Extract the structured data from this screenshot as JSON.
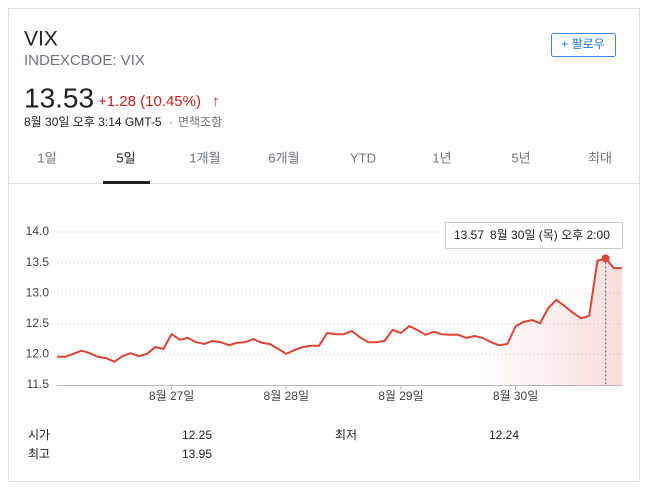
{
  "header": {
    "title": "VIX",
    "subtitle": "INDEXCBOE: VIX",
    "price": "13.53",
    "change": "+1.28 (10.45%)",
    "arrow": "↑",
    "timestamp": "8월 30일 오후 3:14 GMT-5",
    "separator": "·",
    "disclaimer": "면책조항",
    "follow": "+ 팔로우"
  },
  "tabs": [
    "1일",
    "5일",
    "1개월",
    "6개월",
    "YTD",
    "1년",
    "5년",
    "최대"
  ],
  "selected_tab": 1,
  "stats": [
    [
      "시가",
      "12.25",
      "최저",
      "12.24"
    ],
    [
      "최고",
      "13.95"
    ]
  ],
  "chart_data": {
    "type": "line",
    "categories": [
      null,
      null,
      null,
      null,
      null,
      null,
      null,
      null,
      null,
      null,
      null,
      null,
      null,
      null,
      "8월 27일",
      null,
      null,
      null,
      null,
      null,
      null,
      null,
      null,
      null,
      null,
      null,
      null,
      null,
      "8월 28일",
      null,
      null,
      null,
      null,
      null,
      null,
      null,
      null,
      null,
      null,
      null,
      null,
      null,
      "8월 29일",
      null,
      null,
      null,
      null,
      null,
      null,
      null,
      null,
      null,
      null,
      null,
      null,
      null,
      "8월 30일",
      null,
      null,
      null,
      null,
      null,
      null,
      null,
      null,
      null,
      null,
      null,
      null,
      null
    ],
    "values": [
      11.96,
      11.96,
      12.01,
      12.06,
      12.02,
      11.96,
      11.94,
      11.88,
      11.97,
      12.02,
      11.97,
      12.01,
      12.12,
      12.09,
      12.33,
      12.24,
      12.27,
      12.2,
      12.17,
      12.22,
      12.2,
      12.15,
      12.19,
      12.2,
      12.25,
      12.19,
      12.17,
      12.09,
      12.01,
      12.07,
      12.12,
      12.14,
      12.14,
      12.35,
      12.33,
      12.33,
      12.38,
      12.28,
      12.2,
      12.2,
      12.22,
      12.4,
      12.35,
      12.46,
      12.4,
      12.32,
      12.37,
      12.33,
      12.32,
      12.32,
      12.27,
      12.3,
      12.27,
      12.2,
      12.15,
      12.17,
      12.46,
      12.53,
      12.56,
      12.51,
      12.76,
      12.89,
      12.79,
      12.68,
      12.59,
      12.63,
      13.53,
      13.57,
      13.41,
      13.41
    ],
    "color": "#db4437",
    "ylim": [
      11.5,
      14
    ],
    "yticks": [
      11.5,
      {
        "value": 12,
        "label": "12.0"
      },
      12.5,
      {
        "value": 13,
        "label": "13.0"
      },
      13.5,
      {
        "value": 14,
        "label": "14.0"
      }
    ],
    "grid": true,
    "tooltip": {
      "index": 67,
      "value": 13.57,
      "label": "8월 30일 (목) 오후 2:00"
    }
  }
}
